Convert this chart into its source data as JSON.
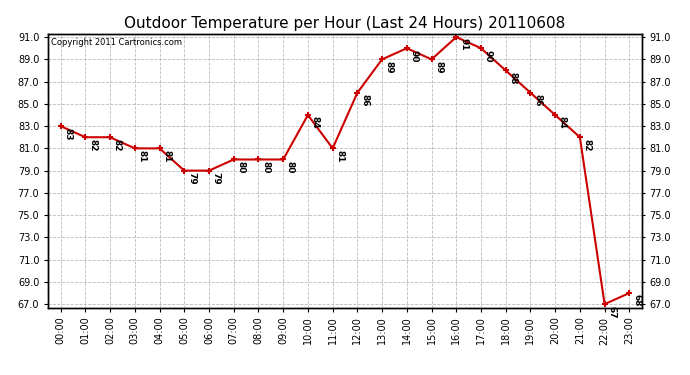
{
  "title": "Outdoor Temperature per Hour (Last 24 Hours) 20110608",
  "copyright": "Copyright 2011 Cartronics.com",
  "hours": [
    "00:00",
    "01:00",
    "02:00",
    "03:00",
    "04:00",
    "05:00",
    "06:00",
    "07:00",
    "08:00",
    "09:00",
    "10:00",
    "11:00",
    "12:00",
    "13:00",
    "14:00",
    "15:00",
    "16:00",
    "17:00",
    "18:00",
    "19:00",
    "20:00",
    "21:00",
    "22:00",
    "23:00"
  ],
  "temps": [
    83,
    82,
    82,
    81,
    81,
    79,
    79,
    80,
    80,
    80,
    84,
    81,
    86,
    89,
    90,
    89,
    91,
    90,
    88,
    86,
    84,
    82,
    67,
    68
  ],
  "line_color": "#cc0000",
  "marker_color": "#cc0000",
  "bg_color": "#ffffff",
  "grid_color": "#bbbbbb",
  "title_fontsize": 11,
  "label_fontsize": 7,
  "annot_fontsize": 6.5,
  "copyright_fontsize": 6,
  "ylim_min": 67.0,
  "ylim_max": 91.0,
  "ytick_step": 2.0
}
